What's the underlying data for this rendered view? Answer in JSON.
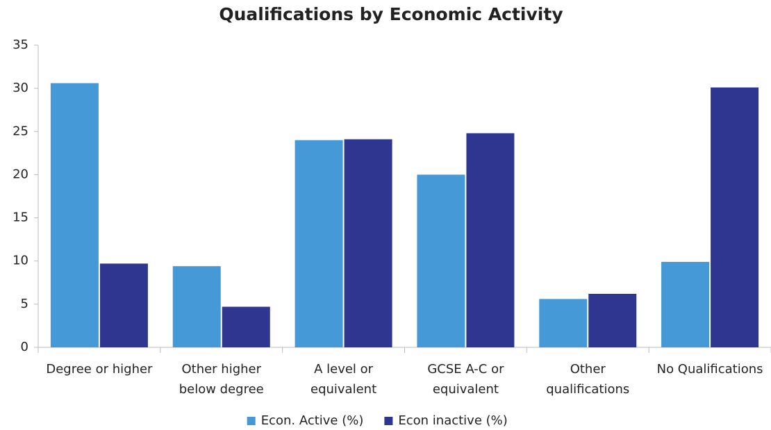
{
  "chart_data": {
    "type": "bar",
    "title": "Qualifications by Economic Activity",
    "categories": [
      [
        "Degree or higher"
      ],
      [
        "Other higher",
        "below degree"
      ],
      [
        "A level or",
        "equivalent"
      ],
      [
        "GCSE A-C or",
        "equivalent"
      ],
      [
        "Other",
        "qualifications"
      ],
      [
        "No Qualifications"
      ]
    ],
    "series": [
      {
        "name": "Econ. Active (%)",
        "color": "#4499d6",
        "values": [
          30.6,
          9.4,
          24.0,
          20.0,
          5.6,
          9.9
        ]
      },
      {
        "name": "Econ inactive (%)",
        "color": "#2e3690",
        "values": [
          9.7,
          4.7,
          24.1,
          24.8,
          6.2,
          30.1
        ]
      }
    ],
    "ylim": [
      0,
      35
    ],
    "yticks": [
      0,
      5,
      10,
      15,
      20,
      25,
      30,
      35
    ],
    "legend": "bottom"
  }
}
